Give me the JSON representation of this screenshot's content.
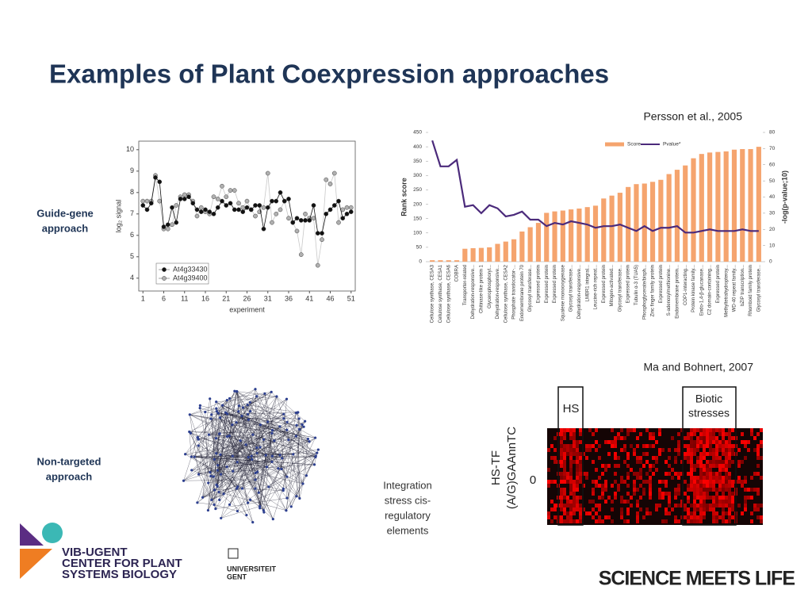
{
  "title": "Examples of Plant Coexpression approaches",
  "citation_persson": "Persson et al., 2005",
  "citation_ma": "Ma and Bohnert, 2007",
  "guide_gene_label": [
    "Guide-gene",
    "approach"
  ],
  "non_targeted_label": [
    "Non-targeted",
    "approach"
  ],
  "integration_label": [
    "Integration",
    "stress cis-",
    "regulatory",
    "elements"
  ],
  "heatmap": {
    "box_hs": "HS",
    "box_biotic": [
      "Biotic",
      "stresses"
    ],
    "row_label": [
      "HS-TF",
      "(A/G)GAAnnTC"
    ],
    "row_value": "0"
  },
  "logo": {
    "lines": [
      "VIB-UGENT",
      "CENTER FOR PLANT",
      "SYSTEMS BIOLOGY"
    ],
    "university": [
      "UNIVERSITEIT",
      "GENT"
    ],
    "slogan": "SCIENCE MEETS LIFE"
  },
  "chart_data": [
    {
      "type": "line",
      "xlabel": "experiment",
      "ylabel": "log₂ signal",
      "x": [
        1,
        2,
        3,
        4,
        5,
        6,
        7,
        8,
        9,
        10,
        11,
        12,
        13,
        14,
        15,
        16,
        17,
        18,
        19,
        20,
        21,
        22,
        23,
        24,
        25,
        26,
        27,
        28,
        29,
        30,
        31,
        32,
        33,
        34,
        35,
        36,
        37,
        38,
        39,
        40,
        41,
        42,
        43,
        44,
        45,
        46,
        47,
        48,
        49,
        50,
        51
      ],
      "xlim": [
        0,
        52
      ],
      "xticks": [
        1,
        6,
        11,
        16,
        21,
        26,
        31,
        36,
        41,
        46,
        51
      ],
      "ylim": [
        3.4,
        10.4
      ],
      "yticks": [
        4,
        5,
        6,
        7,
        8,
        9,
        10
      ],
      "series": [
        {
          "name": "At4g33430",
          "color": "#111111",
          "values": [
            7.4,
            7.2,
            7.5,
            8.7,
            8.5,
            6.4,
            6.5,
            7.3,
            6.6,
            7.7,
            7.7,
            7.8,
            7.5,
            7.2,
            7.1,
            7.2,
            7.1,
            7.0,
            7.3,
            7.6,
            7.4,
            7.5,
            7.2,
            7.2,
            7.1,
            7.3,
            7.2,
            7.4,
            7.4,
            6.3,
            7.3,
            7.6,
            7.6,
            8.0,
            7.6,
            7.7,
            6.6,
            6.8,
            6.7,
            6.7,
            6.7,
            7.4,
            6.1,
            6.1,
            7.0,
            7.2,
            7.4,
            7.6,
            6.8,
            7.0,
            7.1
          ]
        },
        {
          "name": "At4g39400",
          "color": "#b0b0b0",
          "values": [
            7.6,
            7.6,
            7.6,
            8.8,
            7.6,
            6.3,
            6.3,
            6.5,
            7.4,
            7.8,
            7.9,
            7.9,
            7.6,
            6.9,
            7.3,
            7.1,
            7.0,
            7.8,
            7.7,
            8.3,
            7.8,
            8.1,
            8.1,
            7.5,
            7.3,
            7.6,
            7.2,
            6.9,
            7.1,
            7.3,
            8.9,
            6.6,
            7.0,
            7.2,
            7.6,
            6.8,
            6.6,
            6.2,
            5.1,
            7.0,
            6.8,
            6.8,
            4.6,
            5.8,
            8.6,
            8.4,
            8.9,
            6.6,
            7.2,
            7.3,
            7.3
          ]
        }
      ]
    },
    {
      "type": "bar_line",
      "ylabel": "Rank score",
      "y2label": "-log(p-value;10)",
      "categories": [
        "Cellulose synthase, CESA3",
        "Cellulose synthase, CESA1",
        "Cellulose synthase, CESA6",
        "COBRA",
        "Transporter-related",
        "Dehydration-responsive...",
        "Chitinase-like protein 1",
        "Glycerophosphoryl...",
        "Dehydration-responsive...",
        "Cellulose synthase, CESA2",
        "Phosphate translocator-...",
        "Endomembrane protein 70",
        "Glycosyl transferase...",
        "Expressed protein",
        "Expressed protein",
        "Expressed protein",
        "Squalene monooxygenase",
        "Glycosyl transferase...",
        "Dehydration-responsive...",
        "LMBR1 integral...",
        "Leucine-rich repeat...",
        "Expressed protein",
        "Mitogen-activated...",
        "Glycosyl transferase...",
        "Expressed protein",
        "Tubulin α-3 (TUA5)",
        "Phosphoglycerate/bisph...",
        "Zinc finger family protein",
        "Expressed protein",
        "S-adenosylmethionine...",
        "Endomembrane protein...",
        "COP1-interacting...",
        "Protein kinase family...",
        "Endo-1,4-β-glucanase...",
        "C2 domain-containing...",
        "Expressed protein",
        "Methyltetrahydropteroy...",
        "WD-40 repeat family...",
        "bZIP transcription...",
        "Rhomboid family protein",
        "Glycosyl transferase..."
      ],
      "ylim": [
        0,
        450
      ],
      "yticks": [
        0,
        50,
        100,
        150,
        200,
        250,
        300,
        350,
        400,
        450
      ],
      "y2lim": [
        0,
        80
      ],
      "y2ticks": [
        0,
        10,
        20,
        30,
        40,
        50,
        60,
        70,
        80
      ],
      "series": [
        {
          "name": "Score",
          "color": "#f5a46e",
          "values": [
            5,
            5,
            5,
            5,
            45,
            47,
            48,
            50,
            62,
            70,
            78,
            105,
            120,
            135,
            170,
            175,
            178,
            182,
            185,
            190,
            195,
            220,
            230,
            240,
            260,
            270,
            272,
            278,
            285,
            305,
            320,
            335,
            360,
            375,
            380,
            382,
            384,
            390,
            392,
            392,
            400
          ]
        },
        {
          "name": "Pvalue*",
          "color": "#4b2a7b",
          "axis": "y2",
          "values": [
            75,
            59,
            59,
            63,
            34,
            35,
            30,
            35,
            33,
            28,
            29,
            31,
            26,
            26,
            22,
            24,
            23,
            25,
            24,
            23,
            21,
            22,
            22,
            23,
            21,
            19,
            22,
            19,
            21,
            21,
            22,
            18,
            18,
            19,
            20,
            19,
            19,
            19,
            20,
            19,
            19
          ]
        }
      ]
    }
  ]
}
